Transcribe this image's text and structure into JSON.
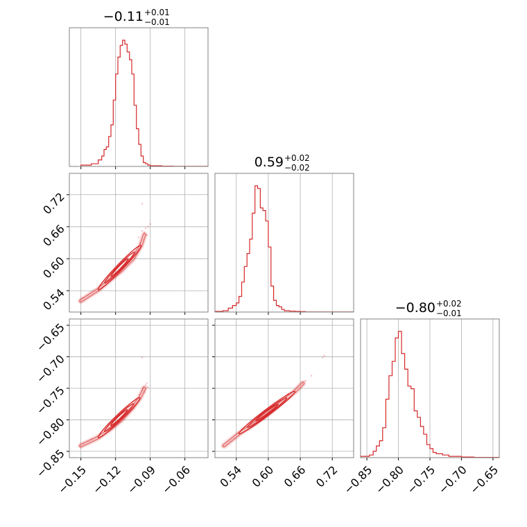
{
  "titles": {
    "p0": {
      "median": "−0.11",
      "plus": "+0.01",
      "minus": "−0.01"
    },
    "p1": {
      "median": "0.59",
      "plus": "+0.02",
      "minus": "−0.02"
    },
    "p2": {
      "median": "−0.80",
      "plus": "+0.02",
      "minus": "−0.01"
    }
  },
  "colors": {
    "series": "#d62728",
    "grid": "#b0b0b0",
    "frame": "#808080"
  },
  "chart_data": {
    "type": "corner",
    "parameters": 3,
    "grid": true,
    "axes": [
      {
        "range": [
          -0.16,
          -0.04
        ],
        "ticks": [
          -0.15,
          -0.12,
          -0.09,
          -0.06
        ],
        "tick_labels": [
          "−0.15",
          "−0.12",
          "−0.09",
          "−0.06"
        ]
      },
      {
        "range": [
          0.5,
          0.76
        ],
        "ticks": [
          0.54,
          0.6,
          0.66,
          0.72
        ],
        "tick_labels": [
          "0.54",
          "0.60",
          "0.66",
          "0.72"
        ]
      },
      {
        "range": [
          -0.86,
          -0.64
        ],
        "ticks": [
          -0.85,
          -0.8,
          -0.75,
          -0.7,
          -0.65
        ],
        "tick_labels": [
          "−0.85",
          "−0.80",
          "−0.75",
          "−0.70",
          "−0.65"
        ]
      }
    ],
    "histograms": [
      {
        "param": 0,
        "bin_edges": [
          -0.15,
          -0.141,
          -0.135,
          -0.132,
          -0.13,
          -0.128,
          -0.126,
          -0.124,
          -0.122,
          -0.12,
          -0.118,
          -0.116,
          -0.114,
          -0.112,
          -0.11,
          -0.108,
          -0.106,
          -0.104,
          -0.102,
          -0.1,
          -0.098,
          -0.096,
          -0.094,
          -0.092,
          -0.09,
          -0.08,
          -0.07,
          -0.04
        ],
        "counts": [
          0.01,
          0.02,
          0.05,
          0.08,
          0.13,
          0.15,
          0.23,
          0.32,
          0.51,
          0.71,
          0.84,
          0.93,
          0.97,
          0.94,
          0.88,
          0.82,
          0.71,
          0.47,
          0.29,
          0.17,
          0.08,
          0.03,
          0.02,
          0.01,
          0.005,
          0.002,
          0.001
        ]
      },
      {
        "param": 1,
        "bin_edges": [
          0.5,
          0.515,
          0.525,
          0.533,
          0.54,
          0.545,
          0.55,
          0.555,
          0.56,
          0.565,
          0.57,
          0.575,
          0.58,
          0.585,
          0.59,
          0.595,
          0.6,
          0.605,
          0.61,
          0.615,
          0.62,
          0.625,
          0.63,
          0.64,
          0.65,
          0.66,
          0.67,
          0.76
        ],
        "counts": [
          0.005,
          0.01,
          0.03,
          0.05,
          0.07,
          0.12,
          0.23,
          0.35,
          0.45,
          0.56,
          0.76,
          0.97,
          0.95,
          0.8,
          0.78,
          0.7,
          0.5,
          0.2,
          0.09,
          0.05,
          0.04,
          0.02,
          0.01,
          0.007,
          0.005,
          0.003,
          0.001
        ]
      },
      {
        "param": 2,
        "bin_edges": [
          -0.86,
          -0.846,
          -0.84,
          -0.835,
          -0.83,
          -0.825,
          -0.82,
          -0.815,
          -0.81,
          -0.805,
          -0.8,
          -0.795,
          -0.79,
          -0.785,
          -0.78,
          -0.775,
          -0.77,
          -0.765,
          -0.76,
          -0.755,
          -0.75,
          -0.745,
          -0.74,
          -0.73,
          -0.72,
          -0.7,
          -0.68,
          -0.64
        ],
        "counts": [
          0.01,
          0.02,
          0.05,
          0.09,
          0.13,
          0.23,
          0.45,
          0.63,
          0.74,
          0.92,
          0.97,
          0.8,
          0.68,
          0.55,
          0.53,
          0.36,
          0.31,
          0.24,
          0.18,
          0.1,
          0.07,
          0.04,
          0.03,
          0.02,
          0.01,
          0.005,
          0.002
        ]
      }
    ],
    "pairs": [
      {
        "x": 0,
        "y": 1,
        "ridge": [
          [
            -0.15,
            0.521
          ],
          [
            -0.135,
            0.542
          ],
          [
            -0.125,
            0.56
          ],
          [
            -0.115,
            0.578
          ],
          [
            -0.105,
            0.6
          ],
          [
            -0.098,
            0.625
          ],
          [
            -0.095,
            0.645
          ]
        ],
        "scatter": [
          [
            -0.151,
            0.52
          ],
          [
            -0.148,
            0.526
          ],
          [
            -0.143,
            0.531
          ],
          [
            -0.14,
            0.535
          ],
          [
            -0.137,
            0.539
          ],
          [
            -0.1,
            0.64
          ],
          [
            -0.097,
            0.652
          ],
          [
            -0.095,
            0.649
          ],
          [
            -0.094,
            0.657
          ],
          [
            -0.093,
            0.644
          ],
          [
            -0.092,
            0.66
          ],
          [
            -0.097,
            0.703
          ],
          [
            -0.09,
            0.665
          ],
          [
            -0.096,
            0.636
          ],
          [
            -0.099,
            0.629
          ]
        ]
      },
      {
        "x": 0,
        "y": 2,
        "ridge": [
          [
            -0.15,
            -0.841
          ],
          [
            -0.135,
            -0.828
          ],
          [
            -0.125,
            -0.815
          ],
          [
            -0.115,
            -0.8
          ],
          [
            -0.105,
            -0.78
          ],
          [
            -0.099,
            -0.765
          ],
          [
            -0.095,
            -0.75
          ]
        ],
        "scatter": [
          [
            -0.151,
            -0.842
          ],
          [
            -0.148,
            -0.838
          ],
          [
            -0.144,
            -0.834
          ],
          [
            -0.141,
            -0.831
          ],
          [
            -0.099,
            -0.76
          ],
          [
            -0.097,
            -0.753
          ],
          [
            -0.096,
            -0.748
          ],
          [
            -0.094,
            -0.745
          ],
          [
            -0.093,
            -0.742
          ],
          [
            -0.097,
            -0.701
          ],
          [
            -0.092,
            -0.748
          ],
          [
            -0.095,
            -0.756
          ]
        ]
      },
      {
        "x": 1,
        "y": 2,
        "ridge": [
          [
            0.517,
            -0.841
          ],
          [
            0.545,
            -0.822
          ],
          [
            0.575,
            -0.805
          ],
          [
            0.6,
            -0.79
          ],
          [
            0.625,
            -0.772
          ],
          [
            0.65,
            -0.755
          ],
          [
            0.665,
            -0.742
          ]
        ],
        "scatter": [
          [
            0.515,
            -0.842
          ],
          [
            0.522,
            -0.838
          ],
          [
            0.528,
            -0.834
          ],
          [
            0.535,
            -0.829
          ],
          [
            0.655,
            -0.748
          ],
          [
            0.66,
            -0.745
          ],
          [
            0.664,
            -0.741
          ],
          [
            0.67,
            -0.738
          ],
          [
            0.681,
            -0.73
          ],
          [
            0.702,
            -0.701
          ],
          [
            0.705,
            -0.698
          ]
        ]
      }
    ]
  }
}
